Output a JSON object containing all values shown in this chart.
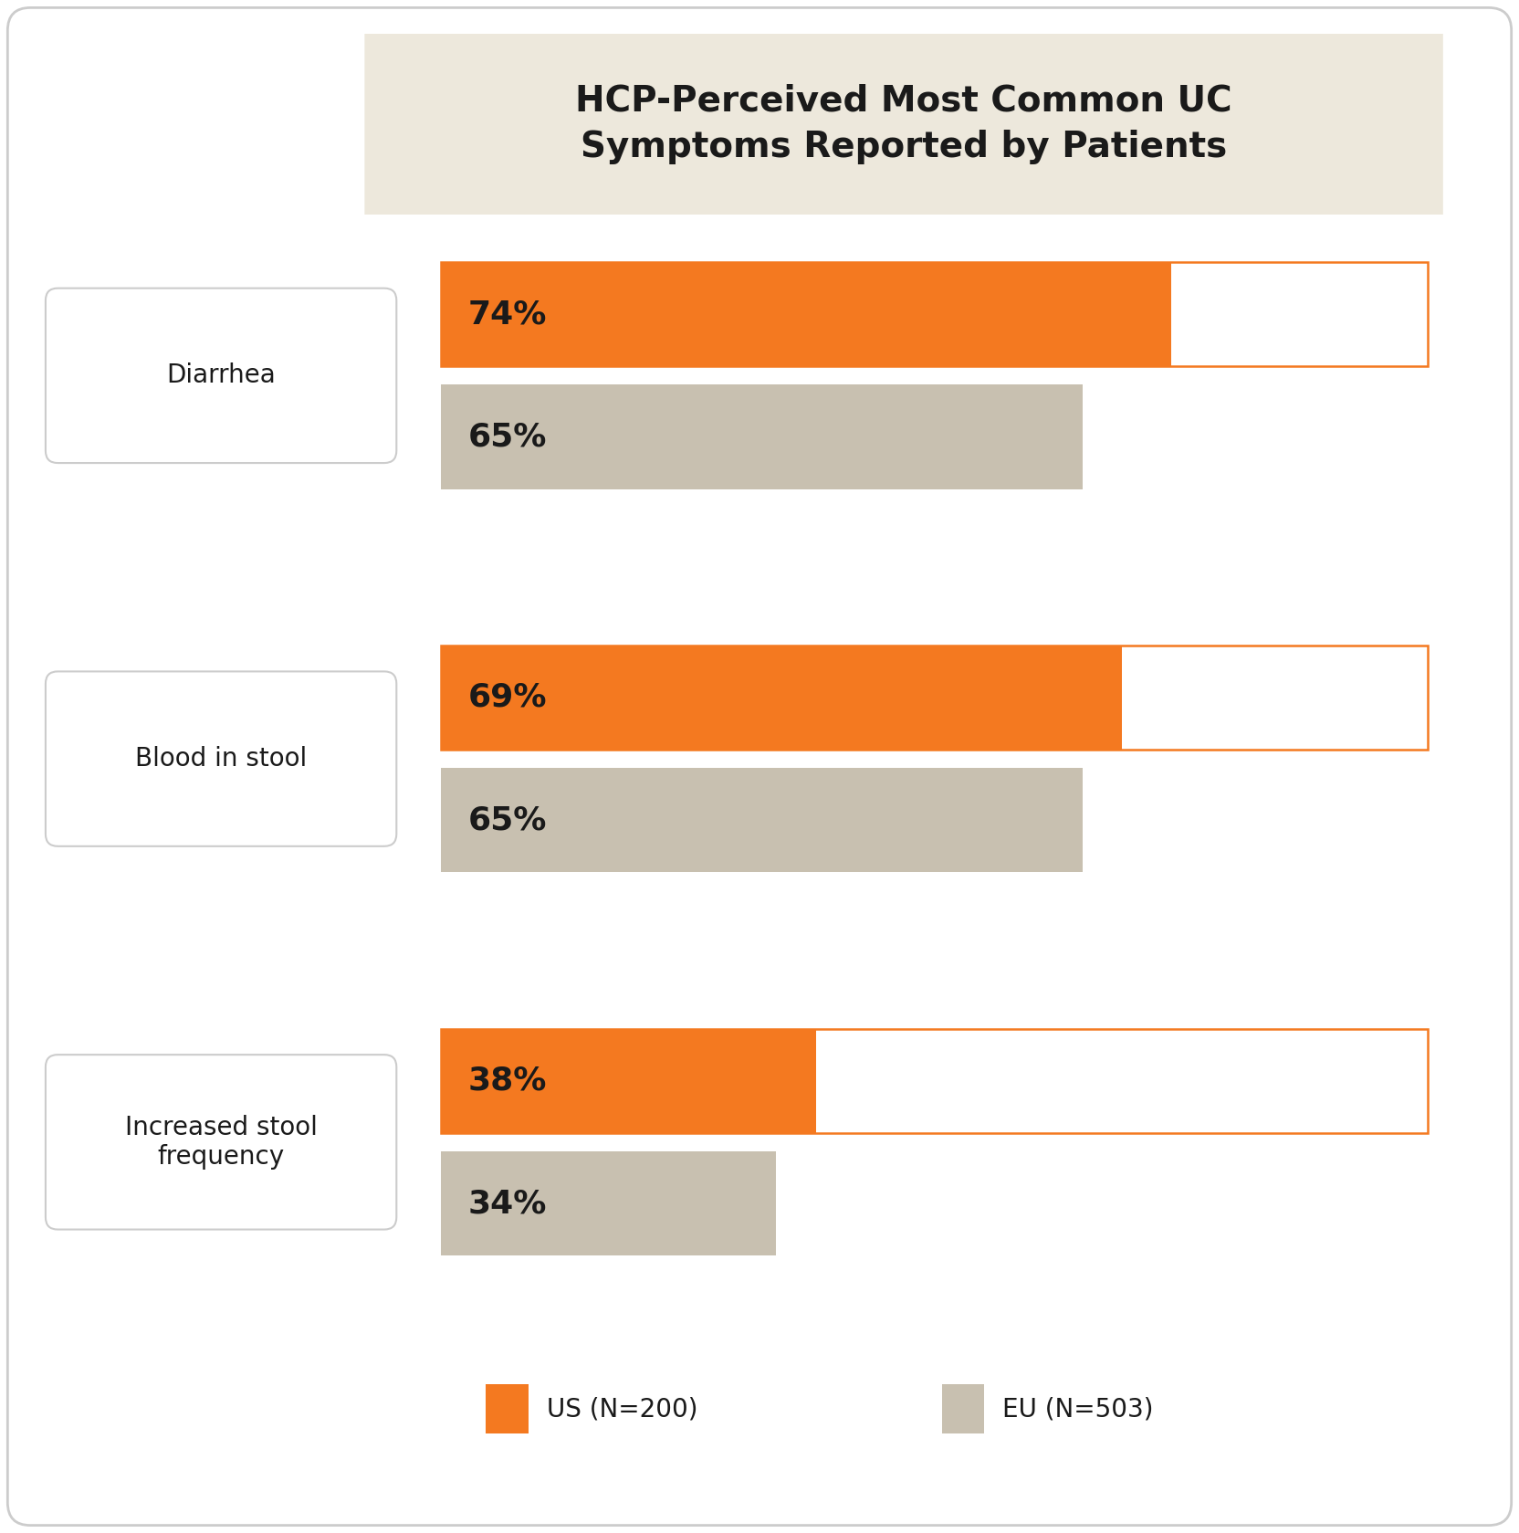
{
  "title": "HCP-Perceived Most Common UC\nSymptoms Reported by Patients",
  "title_bg_color": "#EDE8DC",
  "categories": [
    "Diarrhea",
    "Blood in stool",
    "Increased stool\nfrequency"
  ],
  "us_values": [
    74,
    69,
    38
  ],
  "eu_values": [
    65,
    65,
    34
  ],
  "max_value": 100,
  "us_color": "#F47920",
  "eu_color": "#C8C0B0",
  "bar_bg_color": "#FFFFFF",
  "us_label": "US (N=200)",
  "eu_label": "EU (N=503)",
  "value_fontsize": 26,
  "label_fontsize": 20,
  "category_label_fontsize": 20,
  "title_fontsize": 28,
  "bg_color": "#FFFFFF",
  "text_color": "#1A1A1A",
  "outer_border_color": "#CCCCCC",
  "category_box_border_color": "#CCCCCC"
}
